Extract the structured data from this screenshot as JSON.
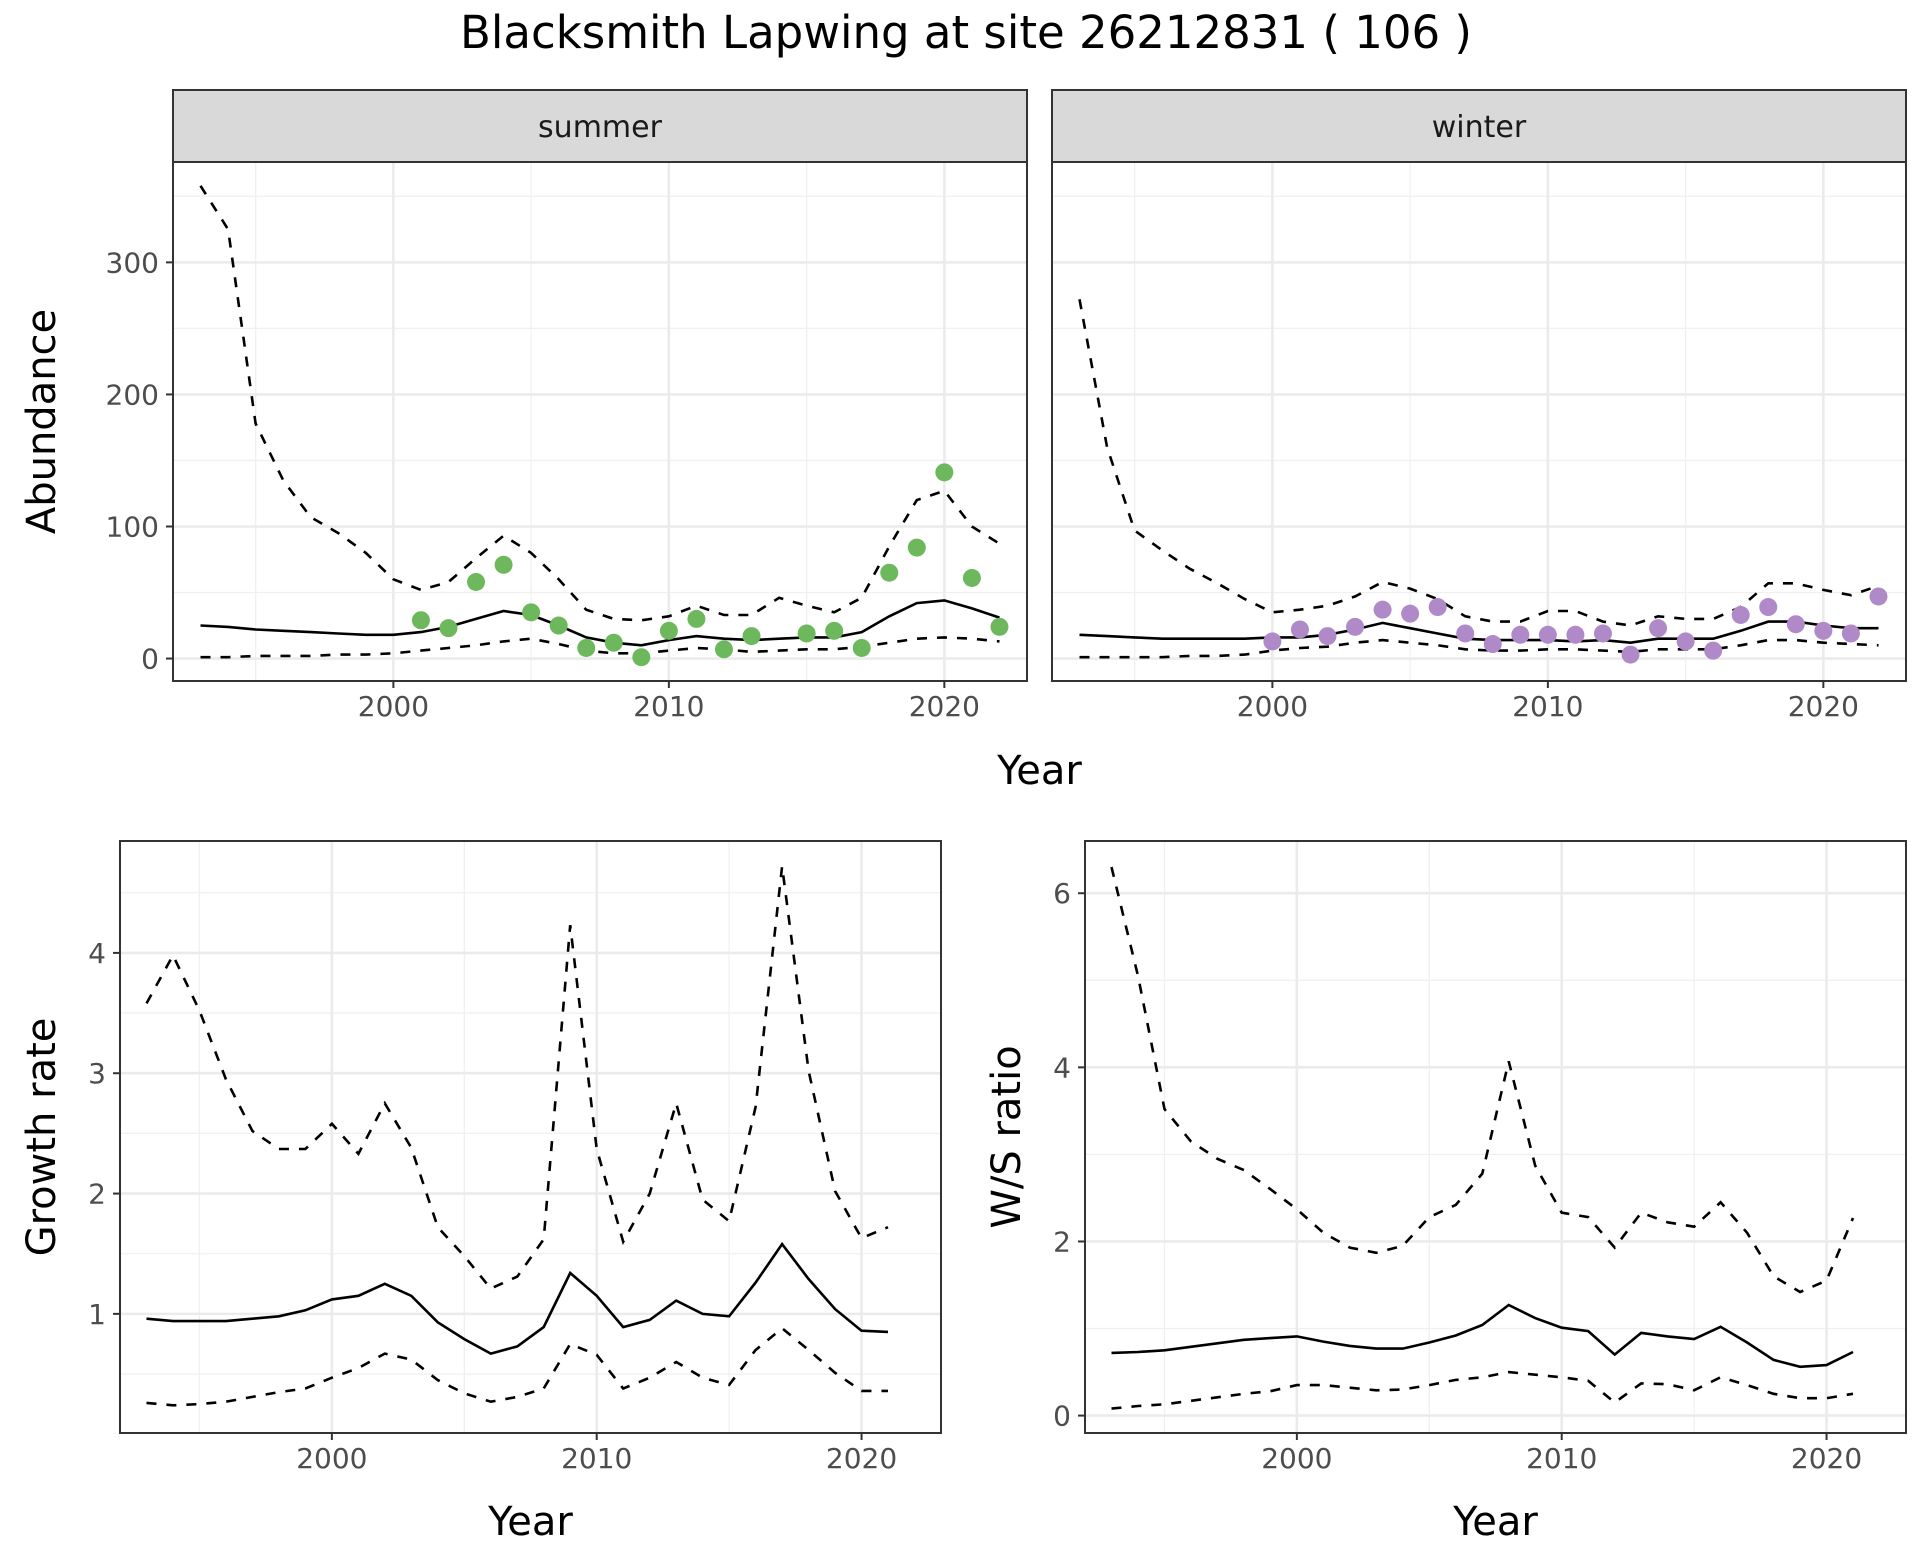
{
  "title": "Blacksmith Lapwing at site 26212831 ( 106 )",
  "chart_data": [
    {
      "type": "line",
      "panel": "abundance",
      "facets": [
        "summer",
        "winter"
      ],
      "xlabel": "Year",
      "ylabel": "Abundance",
      "xlim": [
        1992,
        2023
      ],
      "ylim": [
        -17,
        376
      ],
      "x_ticks": [
        2000,
        2010,
        2020
      ],
      "y_ticks": [
        0,
        100,
        200,
        300
      ],
      "x": [
        1993,
        1994,
        1995,
        1996,
        1997,
        1998,
        1999,
        2000,
        2001,
        2002,
        2003,
        2004,
        2005,
        2006,
        2007,
        2008,
        2009,
        2010,
        2011,
        2012,
        2013,
        2014,
        2015,
        2016,
        2017,
        2018,
        2019,
        2020,
        2021,
        2022
      ],
      "grid": true,
      "summer": {
        "point_color": "#6db85c",
        "fitted": [
          25,
          24,
          22,
          21,
          20,
          19,
          18,
          18,
          20,
          24,
          30,
          36,
          33,
          25,
          16,
          12,
          10,
          14,
          17,
          15,
          14,
          15,
          16,
          16,
          20,
          32,
          42,
          44,
          38,
          31
        ],
        "upper": [
          358,
          325,
          178,
          135,
          107,
          95,
          80,
          60,
          52,
          58,
          76,
          93,
          80,
          60,
          37,
          30,
          29,
          32,
          40,
          33,
          33,
          46,
          40,
          35,
          46,
          85,
          120,
          127,
          100,
          87
        ],
        "lower": [
          1,
          1,
          2,
          2,
          2,
          3,
          3,
          4,
          6,
          8,
          10,
          13,
          15,
          11,
          6,
          4,
          4,
          6,
          8,
          7,
          5,
          6,
          7,
          7,
          9,
          12,
          15,
          16,
          15,
          13
        ],
        "obs_x": [
          2001,
          2002,
          2003,
          2004,
          2005,
          2006,
          2007,
          2008,
          2009,
          2010,
          2011,
          2012,
          2013,
          2015,
          2016,
          2017,
          2018,
          2019,
          2020,
          2021,
          2022
        ],
        "obs_y": [
          29,
          23,
          58,
          71,
          35,
          25,
          8,
          12,
          1,
          21,
          30,
          7,
          17,
          19,
          21,
          8,
          65,
          84,
          141,
          61,
          24
        ]
      },
      "winter": {
        "point_color": "#b08ac8",
        "fitted": [
          18,
          17,
          16,
          15,
          15,
          15,
          15,
          16,
          16,
          18,
          22,
          27,
          23,
          19,
          15,
          14,
          14,
          14,
          13,
          14,
          12,
          15,
          15,
          15,
          21,
          28,
          28,
          25,
          23,
          23
        ],
        "upper": [
          272,
          160,
          97,
          82,
          68,
          57,
          45,
          35,
          37,
          40,
          47,
          58,
          53,
          45,
          32,
          28,
          28,
          36,
          36,
          28,
          25,
          32,
          30,
          30,
          39,
          57,
          57,
          52,
          48,
          55
        ],
        "lower": [
          1,
          1,
          1,
          1,
          2,
          2,
          3,
          6,
          8,
          9,
          12,
          14,
          12,
          10,
          7,
          6,
          6,
          7,
          7,
          6,
          5,
          7,
          7,
          7,
          10,
          14,
          14,
          12,
          11,
          10
        ],
        "obs_x": [
          2000,
          2001,
          2002,
          2003,
          2004,
          2005,
          2006,
          2007,
          2008,
          2009,
          2010,
          2011,
          2012,
          2013,
          2014,
          2015,
          2016,
          2017,
          2018,
          2019,
          2020,
          2021,
          2022
        ],
        "obs_y": [
          13,
          22,
          17,
          24,
          37,
          34,
          39,
          19,
          11,
          18,
          18,
          18,
          19,
          3,
          23,
          13,
          6,
          33,
          39,
          26,
          21,
          19,
          47
        ]
      }
    },
    {
      "type": "line",
      "panel": "growth",
      "xlabel": "Year",
      "ylabel": "Growth rate",
      "xlim": [
        1992,
        2023
      ],
      "ylim": [
        0.01,
        4.93
      ],
      "x_ticks": [
        2000,
        2010,
        2020
      ],
      "y_ticks": [
        1,
        2,
        3,
        4
      ],
      "x": [
        1993,
        1994,
        1995,
        1996,
        1997,
        1998,
        1999,
        2000,
        2001,
        2002,
        2003,
        2004,
        2005,
        2006,
        2007,
        2008,
        2009,
        2010,
        2011,
        2012,
        2013,
        2014,
        2015,
        2016,
        2017,
        2018,
        2019,
        2020,
        2021
      ],
      "fitted": [
        0.96,
        0.94,
        0.94,
        0.94,
        0.96,
        0.98,
        1.03,
        1.12,
        1.15,
        1.25,
        1.15,
        0.93,
        0.79,
        0.67,
        0.73,
        0.89,
        1.34,
        1.15,
        0.89,
        0.95,
        1.11,
        1.0,
        0.98,
        1.26,
        1.58,
        1.29,
        1.04,
        0.86,
        0.85
      ],
      "upper": [
        3.58,
        3.98,
        3.52,
        2.95,
        2.52,
        2.37,
        2.37,
        2.58,
        2.33,
        2.75,
        2.38,
        1.72,
        1.48,
        1.21,
        1.31,
        1.62,
        4.23,
        2.37,
        1.6,
        2.0,
        2.75,
        1.95,
        1.77,
        2.72,
        4.72,
        3.02,
        2.02,
        1.63,
        1.72
      ],
      "lower": [
        0.26,
        0.24,
        0.25,
        0.27,
        0.31,
        0.35,
        0.38,
        0.47,
        0.55,
        0.67,
        0.62,
        0.45,
        0.34,
        0.27,
        0.31,
        0.38,
        0.75,
        0.66,
        0.38,
        0.47,
        0.6,
        0.47,
        0.41,
        0.7,
        0.88,
        0.7,
        0.51,
        0.36,
        0.36
      ],
      "grid": true
    },
    {
      "type": "line",
      "panel": "ws_ratio",
      "xlabel": "Year",
      "ylabel": "W/S ratio",
      "xlim": [
        1992,
        2023
      ],
      "ylim": [
        -0.2,
        6.6
      ],
      "x_ticks": [
        2000,
        2010,
        2020
      ],
      "y_ticks": [
        0,
        2,
        4,
        6
      ],
      "x": [
        1993,
        1994,
        1995,
        1996,
        1997,
        1998,
        1999,
        2000,
        2001,
        2002,
        2003,
        2004,
        2005,
        2006,
        2007,
        2008,
        2009,
        2010,
        2011,
        2012,
        2013,
        2014,
        2015,
        2016,
        2017,
        2018,
        2019,
        2020,
        2021
      ],
      "fitted": [
        0.72,
        0.73,
        0.75,
        0.79,
        0.83,
        0.87,
        0.89,
        0.91,
        0.85,
        0.8,
        0.77,
        0.77,
        0.84,
        0.92,
        1.04,
        1.27,
        1.12,
        1.01,
        0.97,
        0.7,
        0.95,
        0.91,
        0.88,
        1.02,
        0.84,
        0.64,
        0.56,
        0.58,
        0.73
      ],
      "upper": [
        6.3,
        5.05,
        3.52,
        3.15,
        2.95,
        2.82,
        2.6,
        2.37,
        2.1,
        1.93,
        1.87,
        1.95,
        2.28,
        2.42,
        2.78,
        4.07,
        2.87,
        2.33,
        2.28,
        1.93,
        2.33,
        2.22,
        2.17,
        2.45,
        2.1,
        1.6,
        1.42,
        1.55,
        2.27
      ],
      "lower": [
        0.08,
        0.11,
        0.13,
        0.17,
        0.21,
        0.25,
        0.28,
        0.35,
        0.35,
        0.32,
        0.29,
        0.3,
        0.35,
        0.41,
        0.44,
        0.5,
        0.47,
        0.44,
        0.4,
        0.15,
        0.37,
        0.36,
        0.29,
        0.44,
        0.35,
        0.25,
        0.2,
        0.2,
        0.25
      ],
      "grid": true
    }
  ]
}
